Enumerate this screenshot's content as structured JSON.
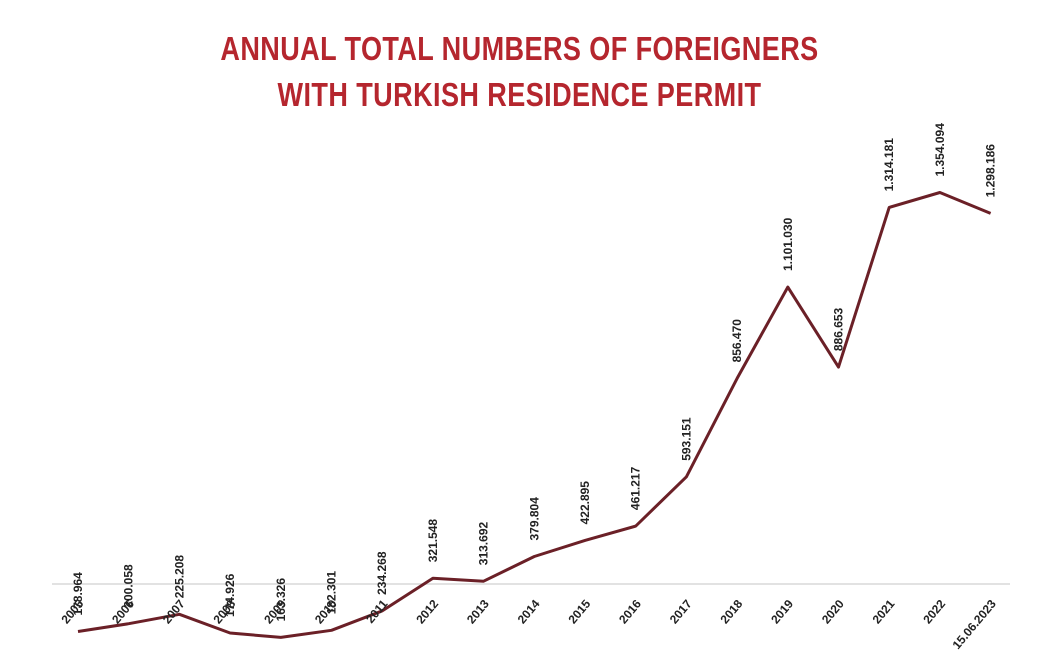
{
  "chart_data": {
    "type": "line",
    "title_line1": "ANNUAL TOTAL NUMBERS OF FOREIGNERS",
    "title_line2": "WITH TURKISH RESIDENCE PERMIT",
    "categories": [
      "2005",
      "2006",
      "2007",
      "2008",
      "2009",
      "2010",
      "2011",
      "2012",
      "2013",
      "2014",
      "2015",
      "2016",
      "2017",
      "2018",
      "2019",
      "2020",
      "2021",
      "2022",
      "15.06.2023"
    ],
    "values": [
      178964,
      200058,
      225208,
      174926,
      163326,
      182301,
      234268,
      321548,
      313692,
      379804,
      422895,
      461217,
      593151,
      856470,
      1101030,
      886653,
      1314181,
      1354094,
      1298186
    ],
    "data_labels": [
      "178.964",
      "200.058",
      "225.208",
      "174.926",
      "163.326",
      "182.301",
      "234.268",
      "321.548",
      "313.692",
      "379.804",
      "422.895",
      "461.217",
      "593.151",
      "856.470",
      "1.101.030",
      "886.653",
      "1.314.181",
      "1.354.094",
      "1.298.186"
    ],
    "xlabel": "",
    "ylabel": "",
    "ylim": [
      0,
      1400000
    ],
    "grid": false,
    "legend": "none"
  },
  "colors": {
    "title": "#b5262e",
    "line": "#6b2027",
    "axis": "#d9d9d9"
  }
}
